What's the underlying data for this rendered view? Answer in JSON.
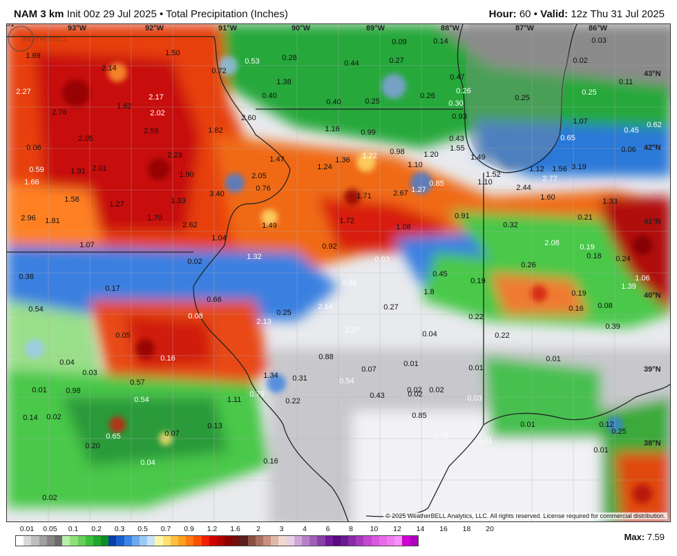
{
  "header": {
    "model": "NAM 3 km",
    "init": "Init 00z 29 Jul 2025",
    "field": "Total Precipitation (Inches)",
    "hour_label": "Hour:",
    "hour_value": "60",
    "valid_label": "Valid:",
    "valid_value": "12z Thu 31 Jul 2025",
    "bullet": "•"
  },
  "map": {
    "longitude_labels": [
      "93°W",
      "92°W",
      "91°W",
      "90°W",
      "89°W",
      "88°W",
      "87°W",
      "86°W"
    ],
    "latitude_labels": [
      "43°N",
      "42°N",
      "41°N",
      "40°N",
      "39°N",
      "38°N"
    ],
    "values": [
      "1.69",
      "1.50",
      "2.14",
      "0.72",
      "0.53",
      "0.28",
      "0.40",
      "0.44",
      "0.27",
      "0.09",
      "0.14",
      "0.03",
      "0.02",
      "2.27",
      "2.76",
      "1.62",
      "2.17",
      "2.02",
      "1.38",
      "0.40",
      "0.25",
      "0.26",
      "0.25",
      "0.30",
      "0.47",
      "0.26",
      "0.25",
      "0.11",
      "0.06",
      "2.05",
      "2.59",
      "1.82",
      "2.60",
      "1.16",
      "0.99",
      "0.93",
      "0.43",
      "1.07",
      "0.45",
      "0.62",
      "0.59",
      "1.91",
      "2.01",
      "2.23",
      "1.90",
      "1.47",
      "1.24",
      "1.36",
      "1.22",
      "0.98",
      "1.20",
      "1.55",
      "1.49",
      "1.10",
      "0.65",
      "0.06",
      "1.66",
      "1.58",
      "1.27",
      "1.33",
      "3.40",
      "2.05",
      "0.76",
      "1.71",
      "2.67",
      "1.27",
      "0.85",
      "1.10",
      "1.52",
      "1.12",
      "1.56",
      "3.19",
      "2.44",
      "2.77",
      "1.60",
      "1.33",
      "2.96",
      "1.81",
      "1.70",
      "2.62",
      "1.49",
      "1.72",
      "1.08",
      "0.91",
      "0.32",
      "0.21",
      "1.07",
      "1.04",
      "0.92",
      "2.08",
      "0.19",
      "0.18",
      "0.24",
      "0.38",
      "0.02",
      "1.32",
      "0.93",
      "0.45",
      "0.26",
      "0.19",
      "1.06",
      "1.39",
      "0.54",
      "0.17",
      "0.66",
      "0.92",
      "1.8",
      "0.19",
      "0.08",
      "0.08",
      "2.13",
      "2.14",
      "0.25",
      "0.27",
      "0.22",
      "0.16",
      "0.39",
      "0.05",
      "2.27",
      "0.04",
      "0.22",
      "0.04",
      "0.16",
      "0.88",
      "0.07",
      "0.01",
      "0.01",
      "0.01",
      "0.03",
      "0.57",
      "1.34",
      "0.31",
      "0.54",
      "0.02",
      "0.01",
      "0.98",
      "0.54",
      "1.11",
      "0.75",
      "0.22",
      "0.43",
      "0.02",
      "0.02",
      "0.03",
      "0.14",
      "0.02",
      "0.13",
      "0.85",
      "0.01",
      "0.12",
      "0.25",
      "0.65",
      "0.20",
      "0.07",
      "0.72",
      "0.01",
      "0.01",
      "0.04",
      "0.16",
      "0.02",
      "0.01"
    ]
  },
  "copyright": "© 2025 WeatherBELL Analytics, LLC. All rights reserved. License required for commercial distribution.",
  "logo_text": "WEATHERBELL",
  "colorbar": {
    "labels": [
      "0.01",
      "0.05",
      "0.1",
      "0.2",
      "0.3",
      "0.5",
      "0.7",
      "0.9",
      "1.2",
      "1.6",
      "2",
      "3",
      "4",
      "6",
      "8",
      "10",
      "12",
      "14",
      "16",
      "18",
      "20"
    ],
    "colors": [
      "#ffffff",
      "#d9d9d9",
      "#bdbdbd",
      "#a0a0a0",
      "#858585",
      "#6b6b6b",
      "#b6f0a8",
      "#8ee07a",
      "#66d05a",
      "#3ebf3e",
      "#20a830",
      "#0f8f22",
      "#0a3ea8",
      "#1a5fd0",
      "#3a86e8",
      "#6aaaf0",
      "#9ccaf5",
      "#c8e3f8",
      "#fff8a8",
      "#ffe070",
      "#ffc040",
      "#ffa020",
      "#ff7a10",
      "#ff5000",
      "#f02000",
      "#d00000",
      "#b00000",
      "#8e0000",
      "#701010",
      "#5a2020",
      "#8a5040",
      "#a87060",
      "#c89080",
      "#e0b8a8",
      "#f0d8d0",
      "#e8d0e8",
      "#d0a8d8",
      "#b880c8",
      "#a060b8",
      "#8840a8",
      "#701898",
      "#5a0a80",
      "#6a1a90",
      "#8a2aa8",
      "#a838c0",
      "#c448d0",
      "#d858e0",
      "#e86ae8",
      "#f07cf0",
      "#f890f8",
      "#d000d0",
      "#b000c0"
    ]
  },
  "max_label": "Max:",
  "max_value": "7.59"
}
